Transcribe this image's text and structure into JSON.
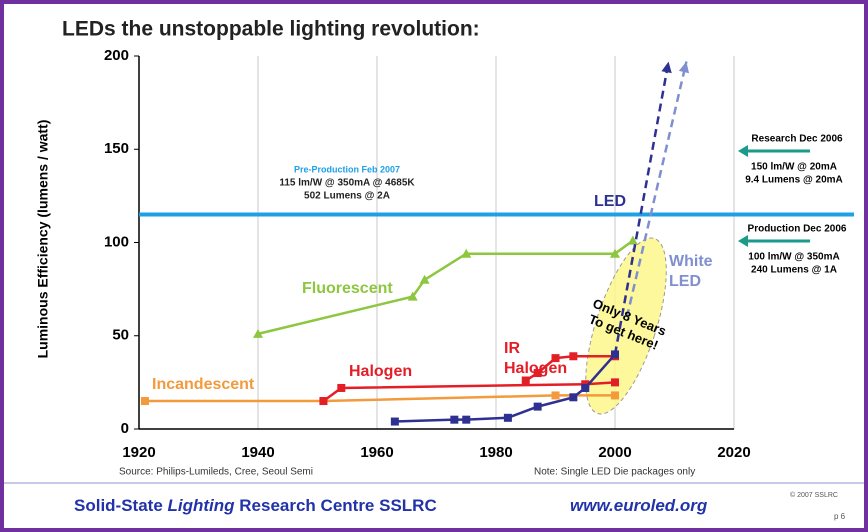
{
  "title": "LEDs the unstoppable lighting revolution:",
  "chart_data": {
    "type": "line",
    "y_label": "Luminous Efficiency (lumens / watt)",
    "xlim": [
      1920,
      2020
    ],
    "xticks": [
      1920,
      1940,
      1960,
      1980,
      2000,
      2020
    ],
    "ylim": [
      0,
      200
    ],
    "yticks": [
      0,
      50,
      100,
      150,
      200
    ],
    "grid": "vertical",
    "series": [
      {
        "name": "Incandescent",
        "color": "#f39a3c",
        "marker": "square",
        "x": [
          1921,
          1951,
          1990,
          2000
        ],
        "values": [
          15,
          15,
          18,
          18
        ]
      },
      {
        "name": "Halogen",
        "color": "#e41e26",
        "marker": "square",
        "x": [
          1951,
          1954,
          1995,
          2000
        ],
        "values": [
          15,
          22,
          24,
          25
        ]
      },
      {
        "name": "IR Halogen",
        "color": "#e41e26",
        "marker": "square",
        "x": [
          1985,
          1987,
          1990,
          1993,
          2000
        ],
        "values": [
          26,
          30,
          38,
          39,
          39
        ]
      },
      {
        "name": "Fluorescent",
        "color": "#8dc63f",
        "marker": "triangle",
        "x": [
          1940,
          1966,
          1968,
          1975,
          2000,
          2003
        ],
        "values": [
          51,
          71,
          80,
          94,
          94,
          101
        ]
      },
      {
        "name": "LED",
        "color": "#2e3192",
        "marker": "square",
        "x": [
          1963,
          1973,
          1975,
          1982,
          1987,
          1993,
          1995,
          2000
        ],
        "values": [
          4,
          5,
          5,
          6,
          12,
          17,
          22,
          40
        ],
        "projection_x": [
          2000,
          2009
        ],
        "projection_values": [
          40,
          197
        ]
      },
      {
        "name": "White LED",
        "color": "#7f8fd0",
        "marker": "none",
        "x": [],
        "values": [],
        "projection_x": [
          2002,
          2012
        ],
        "projection_values": [
          60,
          197
        ]
      }
    ],
    "reference_line": {
      "value": 115,
      "color": "#1ea0e6",
      "label": [
        "Pre-Production Feb 2007",
        "115 lm/W @ 350mA @ 4685K",
        "502 Lumens @ 2A"
      ]
    },
    "callout": "Only 8 Years To get here!",
    "right_notes": [
      [
        "Research Dec 2006",
        "150 lm/W @ 20mA",
        "9.4 Lumens @ 20mA"
      ],
      [
        "Production Dec 2006",
        "100 lm/W @ 350mA",
        "240 Lumens @ 1A"
      ]
    ],
    "source": "Source:  Philips-Lumileds, Cree, Seoul Semi",
    "note": "Note: Single LED Die packages only"
  },
  "footer": {
    "org": [
      "Solid-State ",
      "Lighting",
      " Research Centre SSLRC"
    ],
    "url": "www.euroled.org",
    "copyright": "© 2007 SSLRC",
    "page": "p 6"
  }
}
